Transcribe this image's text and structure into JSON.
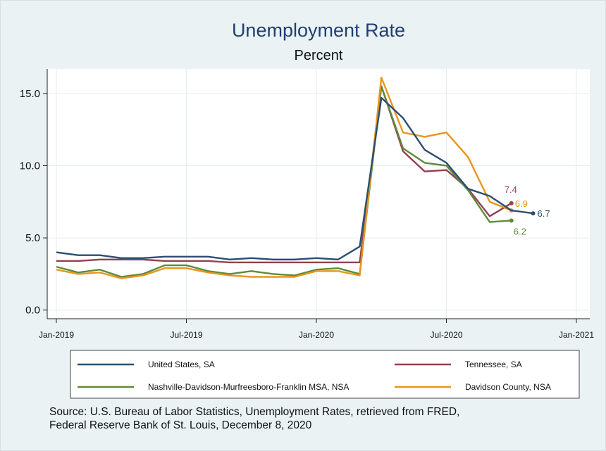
{
  "chart_data": {
    "type": "line",
    "title": "Unemployment Rate",
    "subtitle": "Percent",
    "x": [
      "2019-01",
      "2019-02",
      "2019-03",
      "2019-04",
      "2019-05",
      "2019-06",
      "2019-07",
      "2019-08",
      "2019-09",
      "2019-10",
      "2019-11",
      "2019-12",
      "2020-01",
      "2020-02",
      "2020-03",
      "2020-04",
      "2020-05",
      "2020-06",
      "2020-07",
      "2020-08",
      "2020-09",
      "2020-10",
      "2020-11"
    ],
    "x_ticks": [
      {
        "date": "2019-01",
        "label": "Jan-2019"
      },
      {
        "date": "2019-07",
        "label": "Jul-2019"
      },
      {
        "date": "2020-01",
        "label": "Jan-2020"
      },
      {
        "date": "2020-07",
        "label": "Jul-2020"
      },
      {
        "date": "2021-01",
        "label": "Jan-2021"
      }
    ],
    "xlim": [
      "2019-01",
      "2021-01"
    ],
    "y_ticks": [
      "0.0",
      "5.0",
      "10.0",
      "15.0"
    ],
    "ylim": [
      -0.6,
      16.7
    ],
    "grid": true,
    "legend_position": "bottom",
    "series": [
      {
        "name": "United States, SA",
        "color": "#2b4e72",
        "end_label": "6.7",
        "values": [
          4.0,
          3.8,
          3.8,
          3.6,
          3.6,
          3.7,
          3.7,
          3.7,
          3.5,
          3.6,
          3.5,
          3.5,
          3.6,
          3.5,
          4.4,
          14.7,
          13.3,
          11.1,
          10.2,
          8.4,
          7.9,
          6.9,
          6.7
        ]
      },
      {
        "name": "Tennessee, SA",
        "color": "#94404f",
        "end_label": "7.4",
        "values": [
          3.4,
          3.4,
          3.5,
          3.5,
          3.5,
          3.4,
          3.4,
          3.4,
          3.3,
          3.3,
          3.3,
          3.3,
          3.3,
          3.3,
          3.3,
          15.5,
          11.0,
          9.6,
          9.7,
          8.4,
          6.5,
          7.4,
          null
        ]
      },
      {
        "name": "Nashville-Davidson-Murfreesboro-Franklin MSA, NSA",
        "color": "#5e8a3a",
        "end_label": "6.2",
        "values": [
          3.0,
          2.6,
          2.8,
          2.3,
          2.5,
          3.1,
          3.1,
          2.7,
          2.5,
          2.7,
          2.5,
          2.4,
          2.8,
          2.9,
          2.5,
          15.5,
          11.2,
          10.2,
          10.0,
          8.3,
          6.1,
          6.2,
          null
        ]
      },
      {
        "name": "Davidson County, NSA",
        "color": "#e8961e",
        "end_label": "6.9",
        "values": [
          2.8,
          2.5,
          2.6,
          2.2,
          2.4,
          2.9,
          2.9,
          2.6,
          2.4,
          2.3,
          2.3,
          2.3,
          2.7,
          2.7,
          2.4,
          16.1,
          12.3,
          12.0,
          12.3,
          10.6,
          7.5,
          6.9,
          null
        ]
      }
    ],
    "source": [
      "Source:  U.S. Bureau of Labor Statistics, Unemployment Rates, retrieved from FRED,",
      "Federal Reserve Bank of St. Louis, December 8, 2020"
    ]
  }
}
